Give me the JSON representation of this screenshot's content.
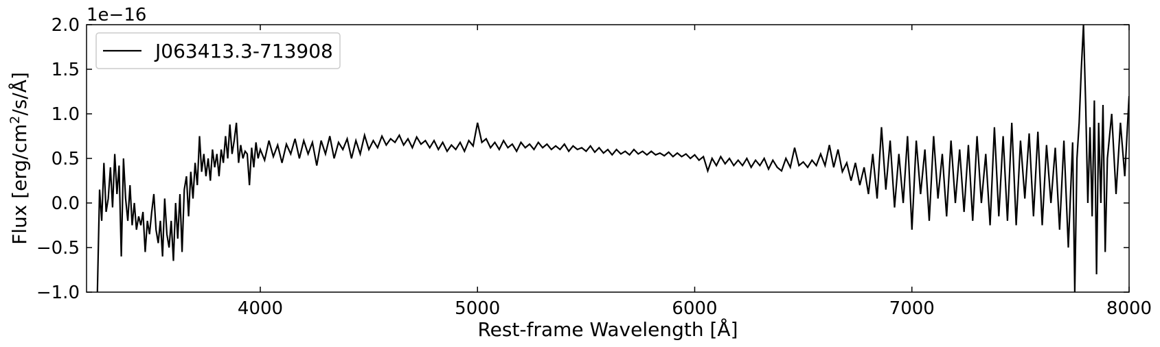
{
  "chart_data": {
    "type": "line",
    "title": "",
    "xlabel": "Rest-frame Wavelength [Å]",
    "ylabel": "Flux [erg/cm²/s/Å]",
    "y_offset_label": "1e−16",
    "xlim": [
      3200,
      8000
    ],
    "ylim": [
      -1.0,
      2.0
    ],
    "x_ticks": [
      {
        "value": 4000,
        "label": "4000"
      },
      {
        "value": 5000,
        "label": "5000"
      },
      {
        "value": 6000,
        "label": "6000"
      },
      {
        "value": 7000,
        "label": "7000"
      },
      {
        "value": 8000,
        "label": "8000"
      }
    ],
    "y_ticks": [
      {
        "value": -1.0,
        "label": "−1.0"
      },
      {
        "value": -0.5,
        "label": "−0.5"
      },
      {
        "value": 0.0,
        "label": "0.0"
      },
      {
        "value": 0.5,
        "label": "0.5"
      },
      {
        "value": 1.0,
        "label": "1.0"
      },
      {
        "value": 1.5,
        "label": "1.5"
      },
      {
        "value": 2.0,
        "label": "2.0"
      }
    ],
    "legend_position": "top-left",
    "grid": false,
    "series": [
      {
        "name": "J063413.3-713908",
        "color": "#000000",
        "points": [
          [
            3250,
            -1.0
          ],
          [
            3260,
            0.15
          ],
          [
            3270,
            -0.2
          ],
          [
            3280,
            0.45
          ],
          [
            3290,
            -0.1
          ],
          [
            3300,
            0.05
          ],
          [
            3310,
            0.4
          ],
          [
            3320,
            -0.05
          ],
          [
            3330,
            0.55
          ],
          [
            3340,
            0.1
          ],
          [
            3350,
            0.42
          ],
          [
            3360,
            -0.6
          ],
          [
            3370,
            0.5
          ],
          [
            3380,
            0.05
          ],
          [
            3390,
            -0.2
          ],
          [
            3400,
            0.2
          ],
          [
            3410,
            -0.25
          ],
          [
            3420,
            0.0
          ],
          [
            3430,
            -0.3
          ],
          [
            3440,
            -0.15
          ],
          [
            3450,
            -0.25
          ],
          [
            3460,
            -0.1
          ],
          [
            3470,
            -0.55
          ],
          [
            3480,
            -0.2
          ],
          [
            3490,
            -0.35
          ],
          [
            3500,
            -0.1
          ],
          [
            3510,
            0.1
          ],
          [
            3520,
            -0.3
          ],
          [
            3530,
            -0.45
          ],
          [
            3540,
            -0.2
          ],
          [
            3550,
            -0.6
          ],
          [
            3560,
            0.05
          ],
          [
            3570,
            -0.35
          ],
          [
            3580,
            -0.5
          ],
          [
            3590,
            -0.2
          ],
          [
            3600,
            -0.65
          ],
          [
            3610,
            0.0
          ],
          [
            3620,
            -0.4
          ],
          [
            3630,
            0.1
          ],
          [
            3640,
            -0.55
          ],
          [
            3650,
            0.15
          ],
          [
            3660,
            0.3
          ],
          [
            3670,
            -0.15
          ],
          [
            3680,
            0.35
          ],
          [
            3690,
            0.05
          ],
          [
            3700,
            0.45
          ],
          [
            3710,
            0.2
          ],
          [
            3720,
            0.75
          ],
          [
            3730,
            0.35
          ],
          [
            3740,
            0.55
          ],
          [
            3750,
            0.3
          ],
          [
            3760,
            0.5
          ],
          [
            3770,
            0.25
          ],
          [
            3780,
            0.6
          ],
          [
            3790,
            0.4
          ],
          [
            3800,
            0.55
          ],
          [
            3810,
            0.3
          ],
          [
            3820,
            0.6
          ],
          [
            3830,
            0.45
          ],
          [
            3840,
            0.75
          ],
          [
            3850,
            0.5
          ],
          [
            3860,
            0.88
          ],
          [
            3870,
            0.55
          ],
          [
            3880,
            0.7
          ],
          [
            3890,
            0.9
          ],
          [
            3900,
            0.45
          ],
          [
            3910,
            0.65
          ],
          [
            3920,
            0.5
          ],
          [
            3930,
            0.58
          ],
          [
            3940,
            0.55
          ],
          [
            3950,
            0.2
          ],
          [
            3960,
            0.62
          ],
          [
            3970,
            0.4
          ],
          [
            3980,
            0.68
          ],
          [
            3990,
            0.5
          ],
          [
            4000,
            0.6
          ],
          [
            4020,
            0.48
          ],
          [
            4040,
            0.7
          ],
          [
            4060,
            0.52
          ],
          [
            4080,
            0.65
          ],
          [
            4100,
            0.45
          ],
          [
            4120,
            0.66
          ],
          [
            4140,
            0.55
          ],
          [
            4160,
            0.72
          ],
          [
            4180,
            0.5
          ],
          [
            4200,
            0.7
          ],
          [
            4220,
            0.55
          ],
          [
            4240,
            0.68
          ],
          [
            4260,
            0.42
          ],
          [
            4280,
            0.7
          ],
          [
            4300,
            0.55
          ],
          [
            4320,
            0.75
          ],
          [
            4340,
            0.5
          ],
          [
            4360,
            0.68
          ],
          [
            4380,
            0.6
          ],
          [
            4400,
            0.72
          ],
          [
            4420,
            0.5
          ],
          [
            4440,
            0.7
          ],
          [
            4460,
            0.55
          ],
          [
            4480,
            0.76
          ],
          [
            4500,
            0.6
          ],
          [
            4520,
            0.7
          ],
          [
            4540,
            0.62
          ],
          [
            4560,
            0.75
          ],
          [
            4580,
            0.65
          ],
          [
            4600,
            0.72
          ],
          [
            4620,
            0.68
          ],
          [
            4640,
            0.76
          ],
          [
            4660,
            0.65
          ],
          [
            4680,
            0.72
          ],
          [
            4700,
            0.62
          ],
          [
            4720,
            0.74
          ],
          [
            4740,
            0.66
          ],
          [
            4760,
            0.7
          ],
          [
            4780,
            0.62
          ],
          [
            4800,
            0.7
          ],
          [
            4820,
            0.6
          ],
          [
            4840,
            0.68
          ],
          [
            4860,
            0.58
          ],
          [
            4880,
            0.65
          ],
          [
            4900,
            0.6
          ],
          [
            4920,
            0.68
          ],
          [
            4940,
            0.58
          ],
          [
            4960,
            0.7
          ],
          [
            4980,
            0.64
          ],
          [
            5000,
            0.9
          ],
          [
            5020,
            0.68
          ],
          [
            5040,
            0.72
          ],
          [
            5060,
            0.62
          ],
          [
            5080,
            0.68
          ],
          [
            5100,
            0.6
          ],
          [
            5120,
            0.7
          ],
          [
            5140,
            0.62
          ],
          [
            5160,
            0.66
          ],
          [
            5180,
            0.58
          ],
          [
            5200,
            0.68
          ],
          [
            5220,
            0.62
          ],
          [
            5240,
            0.66
          ],
          [
            5260,
            0.6
          ],
          [
            5280,
            0.68
          ],
          [
            5300,
            0.62
          ],
          [
            5320,
            0.66
          ],
          [
            5340,
            0.6
          ],
          [
            5360,
            0.64
          ],
          [
            5380,
            0.6
          ],
          [
            5400,
            0.66
          ],
          [
            5420,
            0.58
          ],
          [
            5440,
            0.64
          ],
          [
            5460,
            0.6
          ],
          [
            5480,
            0.62
          ],
          [
            5500,
            0.58
          ],
          [
            5520,
            0.64
          ],
          [
            5540,
            0.57
          ],
          [
            5560,
            0.62
          ],
          [
            5580,
            0.56
          ],
          [
            5600,
            0.6
          ],
          [
            5620,
            0.54
          ],
          [
            5640,
            0.6
          ],
          [
            5660,
            0.55
          ],
          [
            5680,
            0.58
          ],
          [
            5700,
            0.54
          ],
          [
            5720,
            0.6
          ],
          [
            5740,
            0.55
          ],
          [
            5760,
            0.58
          ],
          [
            5780,
            0.54
          ],
          [
            5800,
            0.58
          ],
          [
            5820,
            0.54
          ],
          [
            5840,
            0.56
          ],
          [
            5860,
            0.53
          ],
          [
            5880,
            0.57
          ],
          [
            5900,
            0.52
          ],
          [
            5920,
            0.56
          ],
          [
            5940,
            0.52
          ],
          [
            5960,
            0.55
          ],
          [
            5980,
            0.5
          ],
          [
            6000,
            0.54
          ],
          [
            6020,
            0.48
          ],
          [
            6040,
            0.52
          ],
          [
            6060,
            0.36
          ],
          [
            6080,
            0.5
          ],
          [
            6100,
            0.42
          ],
          [
            6120,
            0.52
          ],
          [
            6140,
            0.44
          ],
          [
            6160,
            0.5
          ],
          [
            6180,
            0.42
          ],
          [
            6200,
            0.48
          ],
          [
            6220,
            0.42
          ],
          [
            6240,
            0.5
          ],
          [
            6260,
            0.4
          ],
          [
            6280,
            0.48
          ],
          [
            6300,
            0.42
          ],
          [
            6320,
            0.5
          ],
          [
            6340,
            0.38
          ],
          [
            6360,
            0.48
          ],
          [
            6380,
            0.4
          ],
          [
            6400,
            0.36
          ],
          [
            6420,
            0.5
          ],
          [
            6440,
            0.4
          ],
          [
            6460,
            0.62
          ],
          [
            6480,
            0.42
          ],
          [
            6500,
            0.46
          ],
          [
            6520,
            0.4
          ],
          [
            6540,
            0.48
          ],
          [
            6560,
            0.42
          ],
          [
            6580,
            0.55
          ],
          [
            6600,
            0.42
          ],
          [
            6620,
            0.65
          ],
          [
            6640,
            0.4
          ],
          [
            6660,
            0.6
          ],
          [
            6680,
            0.35
          ],
          [
            6700,
            0.45
          ],
          [
            6720,
            0.25
          ],
          [
            6740,
            0.45
          ],
          [
            6760,
            0.2
          ],
          [
            6780,
            0.4
          ],
          [
            6800,
            0.1
          ],
          [
            6820,
            0.55
          ],
          [
            6840,
            0.05
          ],
          [
            6860,
            0.85
          ],
          [
            6880,
            0.15
          ],
          [
            6900,
            0.7
          ],
          [
            6920,
            -0.05
          ],
          [
            6940,
            0.55
          ],
          [
            6960,
            0.0
          ],
          [
            6980,
            0.75
          ],
          [
            7000,
            -0.3
          ],
          [
            7020,
            0.7
          ],
          [
            7040,
            0.1
          ],
          [
            7060,
            0.6
          ],
          [
            7080,
            -0.2
          ],
          [
            7100,
            0.75
          ],
          [
            7120,
            0.05
          ],
          [
            7140,
            0.55
          ],
          [
            7160,
            -0.15
          ],
          [
            7180,
            0.7
          ],
          [
            7200,
            0.0
          ],
          [
            7220,
            0.6
          ],
          [
            7240,
            -0.1
          ],
          [
            7260,
            0.65
          ],
          [
            7280,
            -0.2
          ],
          [
            7300,
            0.75
          ],
          [
            7320,
            0.0
          ],
          [
            7340,
            0.55
          ],
          [
            7360,
            -0.25
          ],
          [
            7380,
            0.85
          ],
          [
            7400,
            -0.15
          ],
          [
            7420,
            0.75
          ],
          [
            7440,
            -0.2
          ],
          [
            7460,
            0.9
          ],
          [
            7480,
            -0.25
          ],
          [
            7500,
            0.7
          ],
          [
            7520,
            0.05
          ],
          [
            7540,
            0.78
          ],
          [
            7560,
            -0.15
          ],
          [
            7580,
            0.8
          ],
          [
            7600,
            -0.25
          ],
          [
            7620,
            0.65
          ],
          [
            7640,
            0.0
          ],
          [
            7660,
            0.62
          ],
          [
            7680,
            -0.3
          ],
          [
            7700,
            0.7
          ],
          [
            7720,
            -0.5
          ],
          [
            7740,
            0.68
          ],
          [
            7750,
            -1.0
          ],
          [
            7760,
            0.5
          ],
          [
            7770,
            0.9
          ],
          [
            7780,
            1.5
          ],
          [
            7790,
            2.0
          ],
          [
            7800,
            1.1
          ],
          [
            7810,
            0.0
          ],
          [
            7820,
            0.85
          ],
          [
            7830,
            -0.15
          ],
          [
            7840,
            1.15
          ],
          [
            7850,
            -0.8
          ],
          [
            7860,
            0.9
          ],
          [
            7870,
            0.0
          ],
          [
            7880,
            1.1
          ],
          [
            7890,
            -0.55
          ],
          [
            7900,
            0.5
          ],
          [
            7920,
            1.0
          ],
          [
            7940,
            0.1
          ],
          [
            7960,
            0.9
          ],
          [
            7980,
            0.3
          ],
          [
            8000,
            1.2
          ]
        ]
      }
    ]
  }
}
